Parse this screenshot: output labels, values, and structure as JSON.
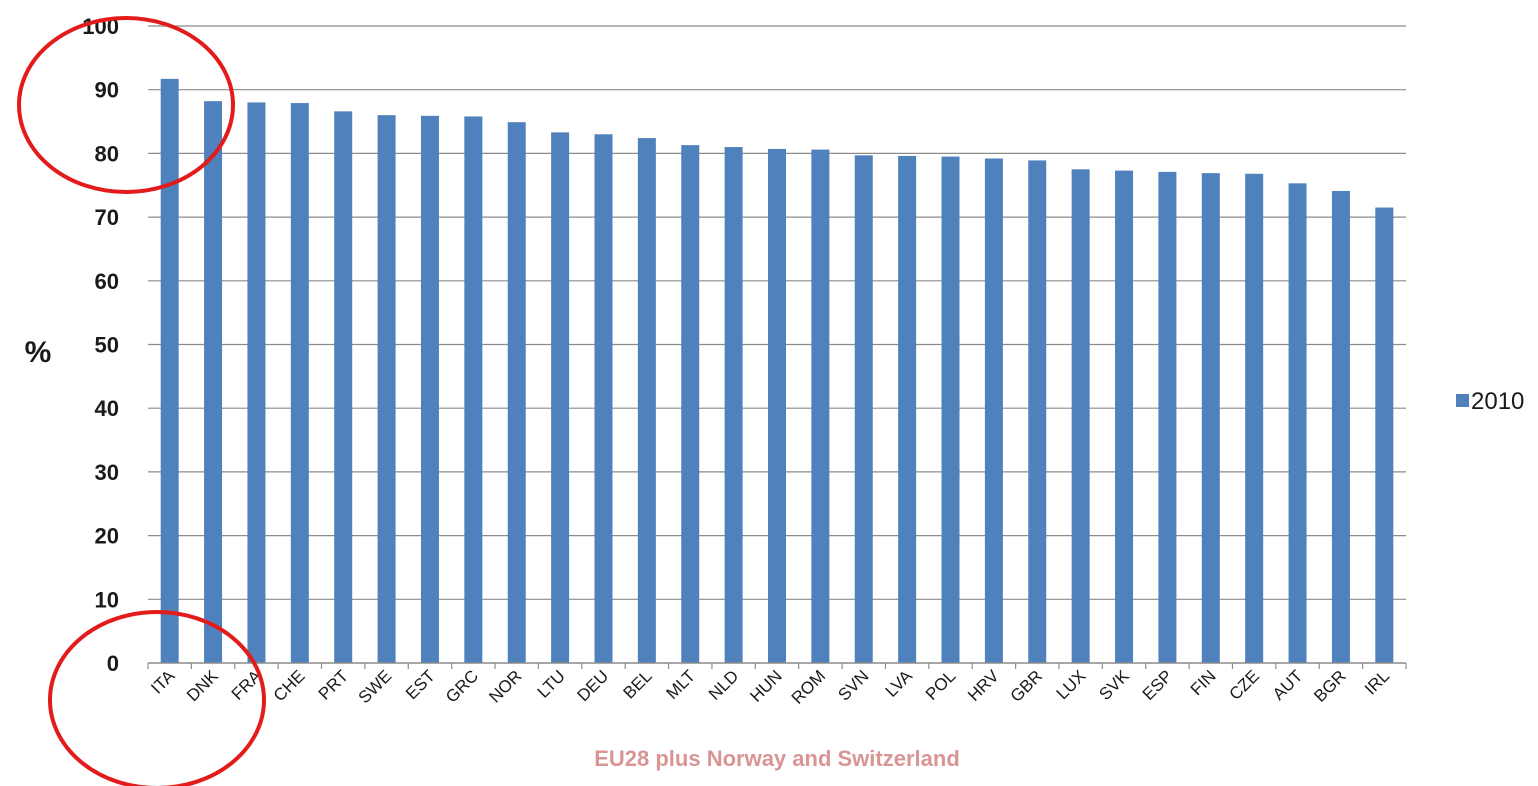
{
  "chart_data": {
    "type": "bar",
    "ylabel": "%",
    "xlabel": "EU28 plus Norway and Switzerland",
    "ylim": [
      0,
      100
    ],
    "yticks": [
      0,
      10,
      20,
      30,
      40,
      50,
      60,
      70,
      80,
      90,
      100
    ],
    "grid": true,
    "legend_position": "right",
    "categories": [
      "ITA",
      "DNK",
      "FRA",
      "CHE",
      "PRT",
      "SWE",
      "EST",
      "GRC",
      "NOR",
      "LTU",
      "DEU",
      "BEL",
      "MLT",
      "NLD",
      "HUN",
      "ROM",
      "SVN",
      "LVA",
      "POL",
      "HRV",
      "GBR",
      "LUX",
      "SVK",
      "ESP",
      "FIN",
      "CZE",
      "AUT",
      "BGR",
      "IRL"
    ],
    "series": [
      {
        "name": "2010",
        "color": "#4f81bd",
        "values": [
          91.7,
          88.2,
          88.0,
          87.9,
          86.6,
          86.0,
          85.9,
          85.8,
          84.9,
          83.3,
          83.0,
          82.4,
          81.3,
          81.0,
          80.7,
          80.6,
          79.7,
          79.6,
          79.5,
          79.2,
          78.9,
          77.5,
          77.3,
          77.1,
          76.9,
          76.8,
          75.3,
          74.1,
          71.5
        ]
      }
    ],
    "colors": {
      "xlabel": "#d99594",
      "annotation_circle": "#e31b1b",
      "grid": "#8c8c8c"
    }
  }
}
